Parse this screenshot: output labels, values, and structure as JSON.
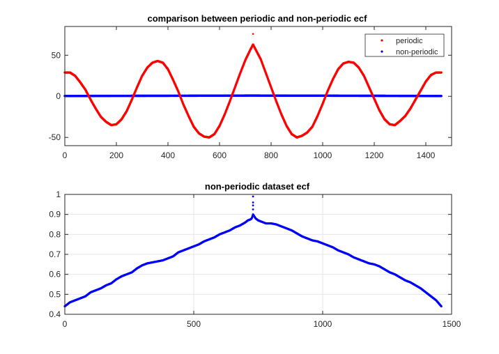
{
  "chart_data": [
    {
      "type": "scatter",
      "title": "comparison between periodic and non-periodic ecf",
      "xlabel": "",
      "ylabel": "",
      "xlim": [
        0,
        1500
      ],
      "ylim": [
        -60,
        85
      ],
      "xticks": [
        0,
        200,
        400,
        600,
        800,
        1000,
        1200,
        1400
      ],
      "yticks": [
        -50,
        0,
        50
      ],
      "grid": false,
      "legend_position": "top-right",
      "series": [
        {
          "name": "periodic",
          "color": "#ff0000",
          "x": [
            0,
            20,
            40,
            60,
            80,
            100,
            120,
            140,
            160,
            180,
            200,
            220,
            240,
            260,
            280,
            300,
            320,
            340,
            360,
            380,
            400,
            420,
            440,
            460,
            480,
            500,
            520,
            540,
            560,
            580,
            600,
            620,
            640,
            660,
            680,
            700,
            720,
            730,
            740,
            760,
            780,
            800,
            820,
            840,
            860,
            880,
            900,
            920,
            940,
            960,
            980,
            1000,
            1020,
            1040,
            1060,
            1080,
            1100,
            1120,
            1140,
            1160,
            1180,
            1200,
            1220,
            1240,
            1260,
            1280,
            1300,
            1320,
            1340,
            1360,
            1380,
            1400,
            1420,
            1440,
            1460
          ],
          "y": [
            29,
            29,
            25,
            17,
            8,
            -4,
            -15,
            -25,
            -31,
            -35,
            -34,
            -28,
            -18,
            -4,
            11,
            25,
            35,
            41,
            43,
            41,
            33,
            20,
            6,
            -10,
            -24,
            -37,
            -45,
            -49,
            -50,
            -46,
            -36,
            -22,
            -6,
            11,
            28,
            44,
            57,
            63,
            57,
            45,
            28,
            11,
            -6,
            -22,
            -36,
            -46,
            -50,
            -48,
            -44,
            -37,
            -24,
            -9,
            7,
            21,
            33,
            40,
            42,
            41,
            35,
            25,
            11,
            -3,
            -17,
            -28,
            -34,
            -35,
            -30,
            -24,
            -15,
            -4,
            7,
            18,
            26,
            29,
            29
          ],
          "outliers": [
            {
              "x": 730,
              "y": 76
            }
          ]
        },
        {
          "name": "non-periodic",
          "color": "#0000ff",
          "x": [
            0,
            200,
            400,
            600,
            730,
            800,
            1000,
            1200,
            1460
          ],
          "y": [
            0.45,
            0.59,
            0.68,
            0.79,
            0.99,
            0.86,
            0.76,
            0.65,
            0.44
          ]
        }
      ]
    },
    {
      "type": "scatter",
      "title": "non-periodic dataset ecf",
      "xlabel": "",
      "ylabel": "",
      "xlim": [
        0,
        1500
      ],
      "ylim": [
        0.4,
        1
      ],
      "xticks": [
        0,
        500,
        1000,
        1500
      ],
      "yticks": [
        0.4,
        0.5,
        0.6,
        0.7,
        0.8,
        0.9,
        1
      ],
      "grid": true,
      "series": [
        {
          "color": "#0000ff",
          "x": [
            0,
            20,
            40,
            60,
            80,
            100,
            120,
            140,
            160,
            180,
            200,
            220,
            240,
            260,
            280,
            300,
            320,
            340,
            360,
            380,
            400,
            420,
            440,
            460,
            480,
            500,
            520,
            540,
            560,
            580,
            600,
            620,
            640,
            660,
            680,
            700,
            710,
            720,
            725,
            730,
            735,
            740,
            750,
            760,
            780,
            800,
            820,
            840,
            860,
            880,
            900,
            920,
            940,
            960,
            980,
            1000,
            1020,
            1040,
            1060,
            1080,
            1100,
            1120,
            1140,
            1160,
            1180,
            1200,
            1220,
            1240,
            1260,
            1280,
            1300,
            1320,
            1340,
            1360,
            1380,
            1400,
            1420,
            1440,
            1460
          ],
          "y": [
            0.44,
            0.46,
            0.47,
            0.48,
            0.49,
            0.51,
            0.52,
            0.53,
            0.545,
            0.555,
            0.575,
            0.59,
            0.6,
            0.61,
            0.63,
            0.645,
            0.655,
            0.66,
            0.665,
            0.67,
            0.68,
            0.69,
            0.71,
            0.72,
            0.73,
            0.74,
            0.75,
            0.765,
            0.775,
            0.785,
            0.8,
            0.81,
            0.82,
            0.835,
            0.845,
            0.86,
            0.87,
            0.875,
            0.88,
            0.9,
            0.89,
            0.88,
            0.87,
            0.865,
            0.855,
            0.855,
            0.85,
            0.84,
            0.83,
            0.82,
            0.805,
            0.79,
            0.78,
            0.77,
            0.765,
            0.755,
            0.745,
            0.735,
            0.72,
            0.71,
            0.7,
            0.685,
            0.675,
            0.665,
            0.655,
            0.65,
            0.64,
            0.625,
            0.61,
            0.6,
            0.585,
            0.57,
            0.56,
            0.545,
            0.53,
            0.51,
            0.49,
            0.47,
            0.44
          ],
          "peak_points": [
            {
              "x": 730,
              "y": 0.96
            },
            {
              "x": 730,
              "y": 0.945
            },
            {
              "x": 730,
              "y": 0.925
            },
            {
              "x": 730,
              "y": 0.99
            }
          ]
        }
      ]
    }
  ]
}
